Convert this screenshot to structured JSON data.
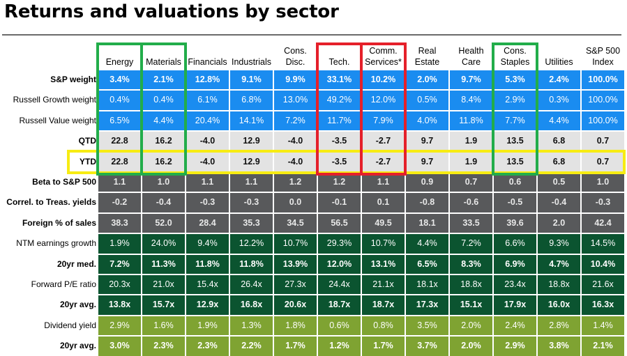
{
  "title": "Returns and valuations by sector",
  "colors": {
    "blue": "#1a8cf0",
    "light_gray": "#e3e3e3",
    "dark_gray": "#58595b",
    "dark_green": "#0b5430",
    "olive_green": "#7fa332",
    "highlight_green": "#22ad4a",
    "highlight_red": "#e5202a",
    "highlight_yellow": "#f7ec13"
  },
  "columns": [
    {
      "label": "Energy"
    },
    {
      "label": "Materials"
    },
    {
      "label": "Financials"
    },
    {
      "label": "Industrials"
    },
    {
      "label": "Cons. Disc."
    },
    {
      "label": "Tech."
    },
    {
      "label": "Comm. Services*"
    },
    {
      "label": "Real Estate"
    },
    {
      "label": "Health Care"
    },
    {
      "label": "Cons. Staples"
    },
    {
      "label": "Utilities"
    },
    {
      "label": "S&P 500 Index"
    }
  ],
  "rows": [
    {
      "label": "S&P weight",
      "bold": true,
      "group": "blue",
      "values": [
        "3.4%",
        "2.1%",
        "12.8%",
        "9.1%",
        "9.9%",
        "33.1%",
        "10.2%",
        "2.0%",
        "9.7%",
        "5.3%",
        "2.4%",
        "100.0%"
      ]
    },
    {
      "label": "Russell Growth weight",
      "bold": false,
      "group": "blue",
      "values": [
        "0.4%",
        "0.4%",
        "6.1%",
        "6.8%",
        "13.0%",
        "49.2%",
        "12.0%",
        "0.5%",
        "8.4%",
        "2.9%",
        "0.3%",
        "100.0%"
      ]
    },
    {
      "label": "Russell Value weight",
      "bold": false,
      "group": "blue",
      "values": [
        "6.5%",
        "4.4%",
        "20.4%",
        "14.1%",
        "7.2%",
        "11.7%",
        "7.9%",
        "4.0%",
        "11.8%",
        "7.7%",
        "4.4%",
        "100.0%"
      ]
    },
    {
      "label": "QTD",
      "bold": true,
      "group": "light_gray",
      "values": [
        "22.8",
        "16.2",
        "-4.0",
        "12.9",
        "-4.0",
        "-3.5",
        "-2.7",
        "9.7",
        "1.9",
        "13.5",
        "6.8",
        "0.7"
      ]
    },
    {
      "label": "YTD",
      "bold": true,
      "group": "light_gray",
      "values": [
        "22.8",
        "16.2",
        "-4.0",
        "12.9",
        "-4.0",
        "-3.5",
        "-2.7",
        "9.7",
        "1.9",
        "13.5",
        "6.8",
        "0.7"
      ]
    },
    {
      "label": "Beta to S&P 500",
      "bold": true,
      "group": "dark_gray",
      "values": [
        "1.1",
        "1.0",
        "1.1",
        "1.1",
        "1.2",
        "1.2",
        "1.1",
        "0.9",
        "0.7",
        "0.6",
        "0.5",
        "1.0"
      ]
    },
    {
      "label": "Correl. to Treas. yields",
      "bold": true,
      "group": "dark_gray",
      "values": [
        "-0.2",
        "-0.4",
        "-0.3",
        "-0.3",
        "0.0",
        "-0.1",
        "0.1",
        "-0.8",
        "-0.6",
        "-0.5",
        "-0.4",
        "-0.3"
      ]
    },
    {
      "label": "Foreign % of sales",
      "bold": true,
      "group": "dark_gray",
      "values": [
        "38.3",
        "52.0",
        "28.4",
        "35.3",
        "34.5",
        "56.5",
        "49.5",
        "18.1",
        "33.5",
        "39.6",
        "2.0",
        "42.4"
      ]
    },
    {
      "label": "NTM earnings growth",
      "bold": false,
      "group": "dark_green",
      "values": [
        "1.9%",
        "24.0%",
        "9.4%",
        "12.2%",
        "10.7%",
        "29.3%",
        "10.7%",
        "4.4%",
        "7.2%",
        "6.6%",
        "9.3%",
        "14.5%"
      ]
    },
    {
      "label": "20yr med.",
      "bold": true,
      "group": "dark_green",
      "values": [
        "7.2%",
        "11.3%",
        "11.8%",
        "11.8%",
        "13.9%",
        "12.0%",
        "13.1%",
        "6.5%",
        "8.3%",
        "6.9%",
        "4.7%",
        "10.4%"
      ]
    },
    {
      "label": "Forward P/E ratio",
      "bold": false,
      "group": "dark_green",
      "values": [
        "20.3x",
        "21.0x",
        "15.4x",
        "26.4x",
        "27.3x",
        "24.4x",
        "21.1x",
        "18.1x",
        "18.8x",
        "23.4x",
        "18.8x",
        "21.6x"
      ]
    },
    {
      "label": "20yr avg.",
      "bold": true,
      "group": "dark_green",
      "values": [
        "13.8x",
        "15.7x",
        "12.9x",
        "16.8x",
        "20.6x",
        "18.7x",
        "18.7x",
        "17.3x",
        "15.1x",
        "17.9x",
        "16.0x",
        "16.3x"
      ]
    },
    {
      "label": "Dividend yield",
      "bold": false,
      "group": "olive_green",
      "values": [
        "2.9%",
        "1.6%",
        "1.9%",
        "1.3%",
        "1.8%",
        "0.6%",
        "0.8%",
        "3.5%",
        "2.0%",
        "2.4%",
        "2.8%",
        "1.4%"
      ]
    },
    {
      "label": "20yr avg.",
      "bold": true,
      "group": "olive_green",
      "values": [
        "3.0%",
        "2.3%",
        "2.3%",
        "2.2%",
        "1.7%",
        "1.2%",
        "1.7%",
        "3.7%",
        "2.0%",
        "2.9%",
        "3.8%",
        "2.1%"
      ]
    }
  ],
  "highlights": [
    {
      "name": "energy-column-highlight",
      "color": "highlight_green",
      "column": "Energy"
    },
    {
      "name": "materials-column-highlight",
      "color": "highlight_green",
      "column": "Materials"
    },
    {
      "name": "tech-column-highlight",
      "color": "highlight_red",
      "column": "Tech."
    },
    {
      "name": "comm-services-column-highlight",
      "color": "highlight_red",
      "column": "Comm. Services*"
    },
    {
      "name": "cons-staples-column-highlight",
      "color": "highlight_green",
      "column": "Cons. Staples"
    },
    {
      "name": "ytd-row-highlight",
      "color": "highlight_yellow",
      "row": "YTD"
    }
  ]
}
